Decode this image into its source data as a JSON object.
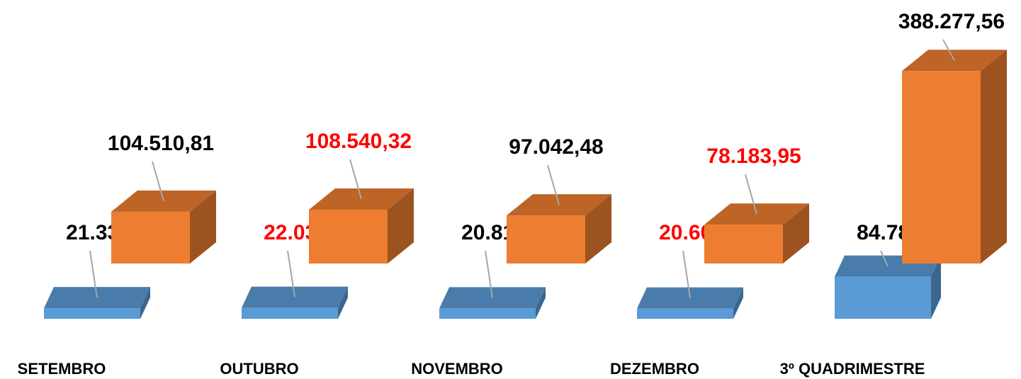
{
  "chart_data": {
    "type": "bar3d",
    "categories": [
      "SETEMBRO",
      "OUTUBRO",
      "NOVEMBRO",
      "DEZEMBRO",
      "3º QUADRIMESTRE"
    ],
    "series": [
      {
        "color": "#5b9bd5",
        "values": [
          21330,
          22031,
          20812,
          20607,
          84780
        ],
        "value_labels": [
          "21.330",
          "22.031",
          "20.812",
          "20.607",
          "84.780"
        ],
        "label_colors": [
          "#000000",
          "#ff0000",
          "#000000",
          "#ff0000",
          "#000000"
        ]
      },
      {
        "color": "#ed7d31",
        "values": [
          104510.81,
          108540.32,
          97042.48,
          78183.95,
          388277.56
        ],
        "value_labels": [
          "104.510,81",
          "108.540,32",
          "97.042,48",
          "78.183,95",
          "388.277,56"
        ],
        "label_colors": [
          "#000000",
          "#ff0000",
          "#000000",
          "#ff0000",
          "#000000"
        ]
      }
    ]
  }
}
